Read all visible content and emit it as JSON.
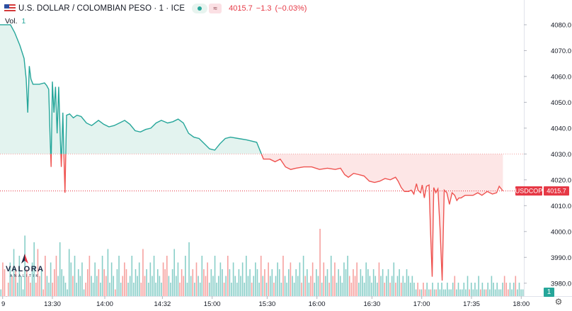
{
  "header": {
    "title": "U.S. DOLLAR / COLOMBIAN PESO · 1 · ICE",
    "last": "4015.7",
    "change": "−1.3",
    "change_pct": "(−0.03%)",
    "icons": [
      "flag-icon",
      "dot-indicator-icon",
      "wave-indicator-icon"
    ]
  },
  "volume_label": {
    "label": "Vol.",
    "value": "1"
  },
  "logo": {
    "name": "VALORA",
    "sub": "ANALITIK"
  },
  "badge": "1",
  "colors": {
    "up": "#26a69a",
    "down": "#ef5350",
    "up_fill": "#e3f3ef",
    "down_fill": "#fde6e6",
    "price_tag": "#e63946"
  },
  "chart_data": {
    "type": "line",
    "symbol": "USDCOP",
    "price_label": "4015.7",
    "reference_price": 4030.0,
    "last_price": 4015.7,
    "ylim": [
      3975,
      4083
    ],
    "y_ticks": [
      "4080.0",
      "4070.0",
      "4060.0",
      "4050.0",
      "4040.0",
      "4030.0",
      "4020.0",
      "4010.0",
      "4000.0",
      "3990.0",
      "3980.0"
    ],
    "y_tick_values": [
      4080,
      4070,
      4060,
      4050,
      4040,
      4030,
      4020,
      4010,
      4000,
      3990,
      3980
    ],
    "xlim": [
      0,
      100
    ],
    "x_ticks": [
      {
        "label": "9",
        "x": 0.5
      },
      {
        "label": "13:30",
        "x": 10.0
      },
      {
        "label": "14:00",
        "x": 20.0
      },
      {
        "label": "14:32",
        "x": 31.0
      },
      {
        "label": "15:00",
        "x": 40.5
      },
      {
        "label": "15:30",
        "x": 51.0
      },
      {
        "label": "16:00",
        "x": 60.5
      },
      {
        "label": "16:30",
        "x": 71.0
      },
      {
        "label": "17:00",
        "x": 80.5
      },
      {
        "label": "17:35",
        "x": 90.0
      },
      {
        "label": "18:00",
        "x": 99.5
      }
    ],
    "price": [
      [
        0.0,
        4080.0
      ],
      [
        2.0,
        4080.0
      ],
      [
        2.8,
        4077.0
      ],
      [
        3.8,
        4072.0
      ],
      [
        4.6,
        4067.0
      ],
      [
        5.0,
        4059.0
      ],
      [
        5.3,
        4046.0
      ],
      [
        5.6,
        4064.0
      ],
      [
        5.9,
        4059.0
      ],
      [
        6.3,
        4057.0
      ],
      [
        7.5,
        4057.0
      ],
      [
        8.5,
        4057.5
      ],
      [
        8.9,
        4056.5
      ],
      [
        9.3,
        4055.0
      ],
      [
        9.55,
        4037.0
      ],
      [
        9.75,
        4025.0
      ],
      [
        10.0,
        4058.0
      ],
      [
        10.3,
        4046.0
      ],
      [
        10.6,
        4056.0
      ],
      [
        10.9,
        4038.0
      ],
      [
        11.2,
        4056.0
      ],
      [
        11.5,
        4037.0
      ],
      [
        11.7,
        4025.0
      ],
      [
        12.0,
        4046.0
      ],
      [
        12.2,
        4029.0
      ],
      [
        12.4,
        4015.0
      ],
      [
        12.7,
        4045.0
      ],
      [
        13.3,
        4045.5
      ],
      [
        14.0,
        4044.0
      ],
      [
        14.7,
        4045.0
      ],
      [
        15.5,
        4044.5
      ],
      [
        16.5,
        4042.0
      ],
      [
        17.5,
        4041.0
      ],
      [
        18.8,
        4043.0
      ],
      [
        19.8,
        4041.5
      ],
      [
        20.8,
        4040.5
      ],
      [
        21.8,
        4041.0
      ],
      [
        22.8,
        4042.0
      ],
      [
        23.8,
        4043.0
      ],
      [
        24.8,
        4041.5
      ],
      [
        25.8,
        4039.0
      ],
      [
        26.8,
        4038.5
      ],
      [
        27.8,
        4039.5
      ],
      [
        28.8,
        4040.0
      ],
      [
        29.8,
        4042.0
      ],
      [
        30.8,
        4043.0
      ],
      [
        32.0,
        4042.0
      ],
      [
        33.0,
        4042.5
      ],
      [
        34.0,
        4043.5
      ],
      [
        35.0,
        4042.0
      ],
      [
        36.0,
        4038.0
      ],
      [
        37.0,
        4036.5
      ],
      [
        38.0,
        4036.0
      ],
      [
        39.0,
        4034.0
      ],
      [
        40.0,
        4032.0
      ],
      [
        41.0,
        4031.5
      ],
      [
        42.0,
        4034.0
      ],
      [
        43.0,
        4036.0
      ],
      [
        44.0,
        4036.5
      ],
      [
        45.5,
        4036.0
      ],
      [
        47.0,
        4035.5
      ],
      [
        48.0,
        4035.0
      ],
      [
        49.0,
        4034.5
      ],
      [
        49.7,
        4031.0
      ],
      [
        50.3,
        4028.0
      ],
      [
        51.5,
        4028.0
      ],
      [
        52.5,
        4027.0
      ],
      [
        53.5,
        4028.0
      ],
      [
        54.5,
        4025.0
      ],
      [
        55.5,
        4024.0
      ],
      [
        56.5,
        4024.5
      ],
      [
        58.0,
        4025.0
      ],
      [
        59.5,
        4025.0
      ],
      [
        61.0,
        4024.0
      ],
      [
        62.5,
        4024.5
      ],
      [
        64.0,
        4024.0
      ],
      [
        65.0,
        4024.5
      ],
      [
        65.8,
        4022.0
      ],
      [
        66.5,
        4021.0
      ],
      [
        67.5,
        4022.5
      ],
      [
        68.5,
        4022.0
      ],
      [
        69.5,
        4021.5
      ],
      [
        70.5,
        4019.5
      ],
      [
        71.5,
        4019.0
      ],
      [
        72.5,
        4019.5
      ],
      [
        73.5,
        4020.5
      ],
      [
        74.5,
        4020.0
      ],
      [
        75.5,
        4021.0
      ],
      [
        76.0,
        4019.5
      ],
      [
        76.6,
        4017.0
      ],
      [
        77.2,
        4015.5
      ],
      [
        78.0,
        4015.5
      ],
      [
        78.5,
        4016.0
      ],
      [
        79.0,
        4014.5
      ],
      [
        79.5,
        4018.5
      ],
      [
        79.8,
        4016.0
      ],
      [
        80.3,
        4015.0
      ],
      [
        80.6,
        4018.0
      ],
      [
        81.0,
        4013.0
      ],
      [
        81.4,
        4017.5
      ],
      [
        81.9,
        4018.0
      ],
      [
        82.2,
        3999.0
      ],
      [
        82.5,
        3982.5
      ],
      [
        82.8,
        4017.0
      ],
      [
        83.2,
        4015.0
      ],
      [
        83.6,
        4016.5
      ],
      [
        84.0,
        4001.0
      ],
      [
        84.4,
        3981.0
      ],
      [
        84.8,
        4016.0
      ],
      [
        85.3,
        4015.0
      ],
      [
        85.8,
        4010.5
      ],
      [
        86.3,
        4015.0
      ],
      [
        86.8,
        4014.0
      ],
      [
        87.2,
        4012.0
      ],
      [
        87.6,
        4013.0
      ],
      [
        88.0,
        4013.0
      ],
      [
        88.8,
        4014.0
      ],
      [
        89.6,
        4014.0
      ],
      [
        90.3,
        4014.0
      ],
      [
        91.2,
        4015.0
      ],
      [
        92.0,
        4014.0
      ],
      [
        93.0,
        4015.5
      ],
      [
        94.0,
        4014.5
      ],
      [
        94.8,
        4015.0
      ],
      [
        95.3,
        4017.5
      ],
      [
        96.0,
        4015.7
      ]
    ],
    "volume": [
      1,
      5,
      4,
      0,
      2,
      5,
      3,
      7,
      4,
      2,
      6,
      3,
      1,
      9,
      4,
      3,
      2,
      5,
      8,
      2,
      7,
      3,
      4,
      1,
      6,
      3,
      2,
      5,
      2,
      4,
      6,
      3,
      8,
      4,
      3,
      2,
      1,
      7,
      5,
      3,
      6,
      2,
      4,
      3,
      5,
      1,
      2,
      4,
      6,
      3,
      2,
      5,
      3,
      4,
      2,
      6,
      4,
      3,
      7,
      2,
      5,
      3,
      1,
      4,
      6,
      2,
      3,
      5,
      4,
      2,
      3,
      6,
      2,
      4,
      3,
      5,
      2,
      7,
      3,
      4,
      2,
      5,
      3,
      6,
      2,
      4,
      3,
      2,
      5,
      4,
      6,
      3,
      2,
      4,
      7,
      3,
      5,
      2,
      4,
      3,
      6,
      2,
      8,
      3,
      4,
      2,
      5,
      3,
      2,
      6,
      4,
      3,
      5,
      2,
      4,
      3,
      6,
      2,
      3,
      5,
      4,
      2,
      3,
      6,
      4,
      2,
      5,
      3,
      2,
      4,
      3,
      5,
      2,
      6,
      3,
      4,
      2,
      3,
      5,
      4,
      2,
      6,
      3,
      4,
      2,
      5,
      3,
      4,
      2,
      3,
      5,
      4,
      2,
      6,
      3,
      2,
      4,
      5,
      3,
      2,
      4,
      3,
      5,
      2,
      6,
      3,
      4,
      2,
      3,
      5,
      2,
      4,
      3,
      10,
      2,
      5,
      3,
      4,
      2,
      6,
      3,
      5,
      2,
      4,
      3,
      2,
      5,
      4,
      6,
      3,
      2,
      4,
      3,
      5,
      2,
      4,
      3,
      2,
      5,
      4,
      3,
      2,
      4,
      3,
      2,
      5,
      3,
      4,
      2,
      3,
      4,
      2,
      3,
      5,
      2,
      3,
      4,
      2,
      3,
      2,
      4,
      3,
      2,
      3,
      2,
      1,
      2,
      1,
      1,
      2,
      1,
      2,
      1,
      1,
      2,
      1,
      1,
      2,
      1,
      2,
      1,
      1,
      2,
      1,
      1,
      2,
      3,
      1,
      2,
      1,
      1,
      2,
      1,
      3,
      1,
      2,
      1,
      2,
      1,
      3,
      1,
      2,
      1,
      1,
      2,
      1,
      3,
      2,
      1,
      2,
      1,
      1,
      2,
      3,
      2,
      1,
      2,
      1,
      2,
      3,
      1,
      2,
      1,
      1
    ],
    "volume_max": 10
  }
}
